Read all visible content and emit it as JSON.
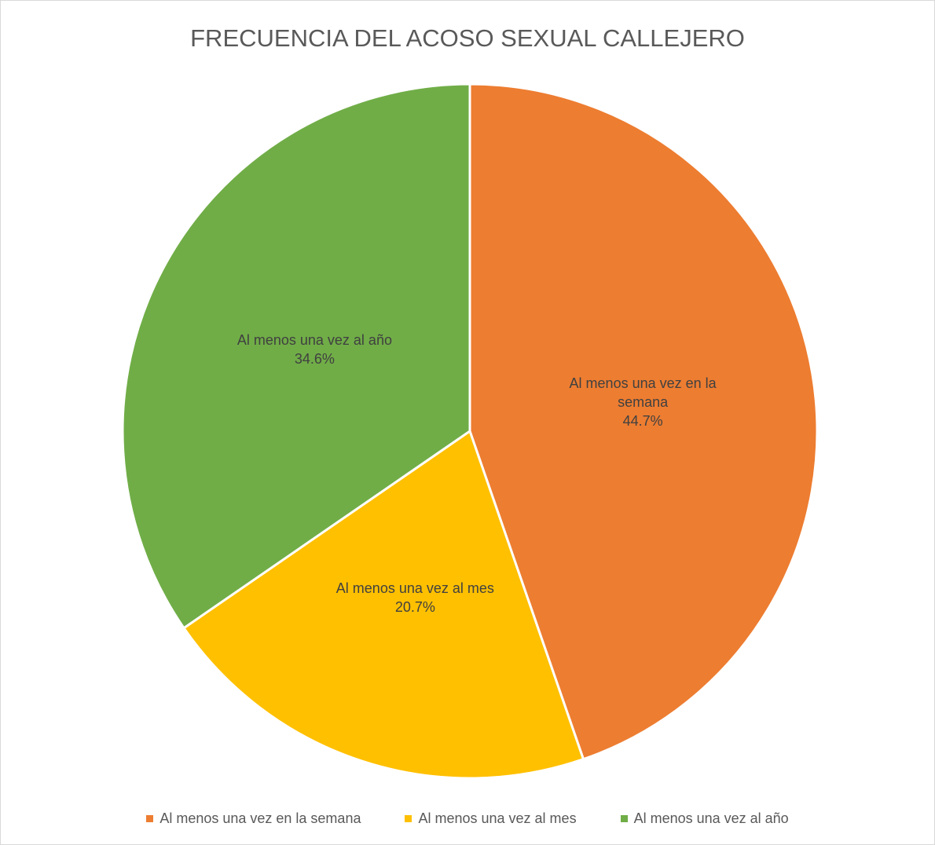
{
  "chart_data": {
    "type": "pie",
    "title": "FRECUENCIA DEL ACOSO SEXUAL CALLEJERO",
    "categories": [
      "Al menos una vez en la semana",
      "Al menos una vez al mes",
      "Al menos una vez al año"
    ],
    "values": [
      44.7,
      20.7,
      34.6
    ],
    "value_labels": [
      "44.7%",
      "20.7%",
      "34.6%"
    ],
    "colors": [
      "#ED7D31",
      "#FFC000",
      "#70AD47"
    ],
    "legend": "bottom"
  }
}
